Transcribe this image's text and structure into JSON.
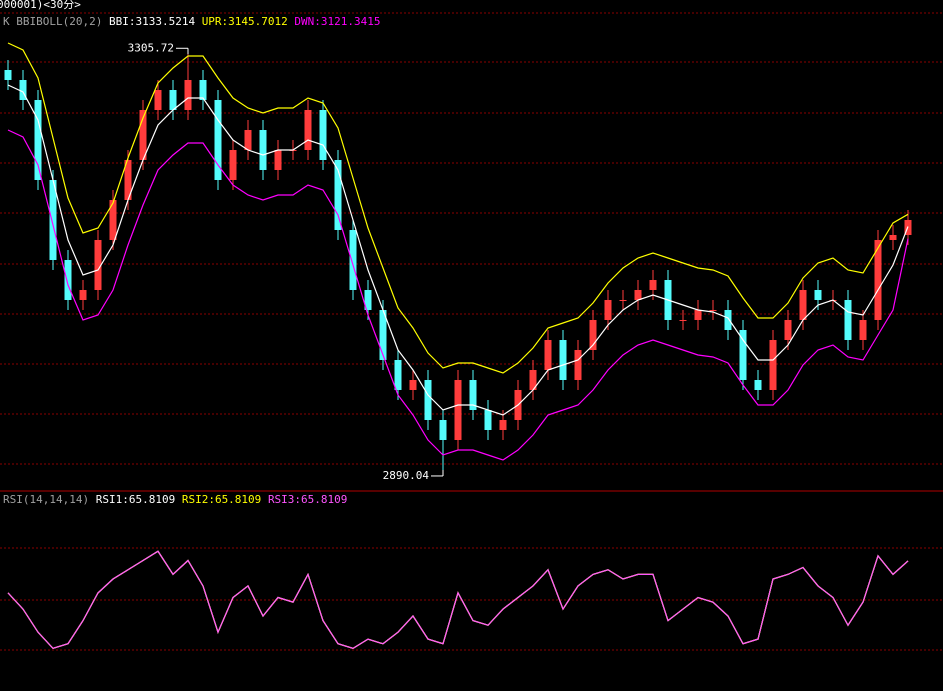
{
  "window_title": "000001)<30分>",
  "chart_data": [
    {
      "type": "candlestick",
      "title": "K  BBIBOLL(20,2)",
      "up_color": "#ff3c3c",
      "down_color": "#54fcfc",
      "open": [
        3290,
        3280,
        3260,
        3180,
        3100,
        3060,
        3070,
        3120,
        3160,
        3200,
        3250,
        3270,
        3250,
        3280,
        3260,
        3180,
        3210,
        3230,
        3190,
        3210,
        3210,
        3250,
        3200,
        3130,
        3070,
        3050,
        3000,
        2970,
        2980,
        2940,
        2920,
        2980,
        2950,
        2930,
        2940,
        2970,
        2990,
        3020,
        2980,
        3010,
        3040,
        3060,
        3060,
        3070,
        3080,
        3040,
        3040,
        3050,
        3050,
        3030,
        2980,
        2970,
        3020,
        3040,
        3070,
        3060,
        3060,
        3020,
        3040,
        3120,
        3125
      ],
      "high": [
        3300,
        3290,
        3270,
        3190,
        3110,
        3080,
        3130,
        3170,
        3210,
        3260,
        3280,
        3280,
        3305.72,
        3290,
        3270,
        3220,
        3240,
        3240,
        3220,
        3220,
        3260,
        3260,
        3210,
        3140,
        3080,
        3060,
        3010,
        2990,
        2990,
        2950,
        2990,
        2990,
        2960,
        2950,
        2980,
        3000,
        3030,
        3030,
        3020,
        3050,
        3070,
        3070,
        3080,
        3090,
        3090,
        3050,
        3060,
        3060,
        3060,
        3040,
        2990,
        3030,
        3050,
        3080,
        3080,
        3070,
        3070,
        3050,
        3130,
        3135,
        3150
      ],
      "low": [
        3270,
        3250,
        3170,
        3090,
        3050,
        3050,
        3060,
        3110,
        3150,
        3190,
        3240,
        3240,
        3240,
        3250,
        3170,
        3170,
        3200,
        3180,
        3180,
        3200,
        3200,
        3190,
        3120,
        3060,
        3040,
        2990,
        2960,
        2960,
        2930,
        2890.04,
        2910,
        2940,
        2920,
        2920,
        2930,
        2960,
        2980,
        2970,
        2970,
        3000,
        3030,
        3050,
        3050,
        3060,
        3030,
        3030,
        3030,
        3040,
        3020,
        2970,
        2960,
        2960,
        3010,
        3030,
        3050,
        3050,
        3010,
        3010,
        3030,
        3110,
        3115
      ],
      "close": [
        3280,
        3260,
        3180,
        3100,
        3060,
        3070,
        3120,
        3160,
        3200,
        3250,
        3270,
        3250,
        3280,
        3260,
        3180,
        3210,
        3230,
        3190,
        3210,
        3210,
        3250,
        3200,
        3130,
        3070,
        3050,
        3000,
        2970,
        2980,
        2940,
        2920,
        2980,
        2950,
        2930,
        2940,
        2970,
        2990,
        3020,
        2980,
        3010,
        3040,
        3060,
        3060,
        3070,
        3080,
        3040,
        3040,
        3050,
        3050,
        3030,
        2980,
        2970,
        3020,
        3040,
        3070,
        3060,
        3060,
        3020,
        3040,
        3120,
        3125,
        3140
      ],
      "series": [
        {
          "name": "BBI:3133.5214",
          "color": "#ffffff",
          "values": [
            3275,
            3268,
            3240,
            3180,
            3120,
            3085,
            3090,
            3115,
            3160,
            3200,
            3235,
            3250,
            3262,
            3262,
            3240,
            3220,
            3210,
            3205,
            3210,
            3210,
            3220,
            3215,
            3190,
            3140,
            3090,
            3050,
            3010,
            2990,
            2965,
            2950,
            2955,
            2955,
            2950,
            2945,
            2955,
            2970,
            2990,
            2995,
            3000,
            3015,
            3035,
            3050,
            3060,
            3065,
            3060,
            3055,
            3050,
            3048,
            3042,
            3020,
            3000,
            3000,
            3015,
            3040,
            3055,
            3060,
            3048,
            3045,
            3070,
            3095,
            3133.5214
          ]
        },
        {
          "name": "UPR:3145.7012",
          "color": "#ffff00",
          "values": [
            3317,
            3310,
            3282,
            3222,
            3162,
            3127,
            3132,
            3157,
            3202,
            3242,
            3277,
            3292,
            3304,
            3304,
            3282,
            3262,
            3252,
            3247,
            3252,
            3252,
            3262,
            3257,
            3232,
            3182,
            3132,
            3092,
            3052,
            3032,
            3007,
            2992,
            2997,
            2997,
            2992,
            2987,
            2997,
            3012,
            3032,
            3037,
            3042,
            3057,
            3077,
            3092,
            3102,
            3107,
            3102,
            3097,
            3092,
            3090,
            3084,
            3062,
            3042,
            3042,
            3057,
            3082,
            3097,
            3102,
            3090,
            3087,
            3112,
            3137,
            3145.7012
          ]
        },
        {
          "name": "DWN:3121.3415",
          "color": "#ff00ff",
          "values": [
            3230,
            3223,
            3195,
            3135,
            3075,
            3040,
            3045,
            3070,
            3115,
            3155,
            3190,
            3205,
            3217,
            3217,
            3195,
            3175,
            3165,
            3160,
            3165,
            3165,
            3175,
            3170,
            3145,
            3095,
            3045,
            3005,
            2965,
            2945,
            2920,
            2905,
            2910,
            2910,
            2905,
            2900,
            2910,
            2925,
            2945,
            2950,
            2955,
            2970,
            2990,
            3005,
            3015,
            3020,
            3015,
            3010,
            3005,
            3003,
            2997,
            2975,
            2955,
            2955,
            2970,
            2995,
            3010,
            3015,
            3003,
            3000,
            3025,
            3050,
            3121.3415
          ]
        }
      ],
      "annotations": [
        "3305.72",
        "2890.04"
      ],
      "ylim": [
        2870,
        3346
      ]
    },
    {
      "type": "line",
      "title": "RSI(14,14,14)",
      "series": [
        {
          "name": "RSI1:65.8109",
          "color": "#ffffff",
          "values": [
            52,
            45,
            35,
            28,
            30,
            40,
            52,
            58,
            62,
            66,
            70,
            60,
            66,
            55,
            35,
            50,
            55,
            42,
            50,
            48,
            60,
            40,
            30,
            28,
            32,
            30,
            35,
            42,
            32,
            30,
            52,
            40,
            38,
            45,
            50,
            55,
            62,
            45,
            55,
            60,
            62,
            58,
            60,
            60,
            40,
            45,
            50,
            48,
            42,
            30,
            32,
            58,
            60,
            63,
            55,
            50,
            38,
            48,
            68,
            60,
            65.8109
          ]
        },
        {
          "name": "RSI2:65.8109",
          "color": "#ffff00",
          "values": [
            52,
            45,
            35,
            28,
            30,
            40,
            52,
            58,
            62,
            66,
            70,
            60,
            66,
            55,
            35,
            50,
            55,
            42,
            50,
            48,
            60,
            40,
            30,
            28,
            32,
            30,
            35,
            42,
            32,
            30,
            52,
            40,
            38,
            45,
            50,
            55,
            62,
            45,
            55,
            60,
            62,
            58,
            60,
            60,
            40,
            45,
            50,
            48,
            42,
            30,
            32,
            58,
            60,
            63,
            55,
            50,
            38,
            48,
            68,
            60,
            65.8109
          ]
        },
        {
          "name": "RSI3:65.8109",
          "color": "#ff55ff",
          "values": [
            52,
            45,
            35,
            28,
            30,
            40,
            52,
            58,
            62,
            66,
            70,
            60,
            66,
            55,
            35,
            50,
            55,
            42,
            50,
            48,
            60,
            40,
            30,
            28,
            32,
            30,
            35,
            42,
            32,
            30,
            52,
            40,
            38,
            45,
            50,
            55,
            62,
            45,
            55,
            60,
            62,
            58,
            60,
            60,
            40,
            45,
            50,
            48,
            42,
            30,
            32,
            58,
            60,
            63,
            55,
            50,
            38,
            48,
            68,
            60,
            65.8109
          ]
        }
      ],
      "ylim": [
        10,
        90
      ]
    }
  ]
}
